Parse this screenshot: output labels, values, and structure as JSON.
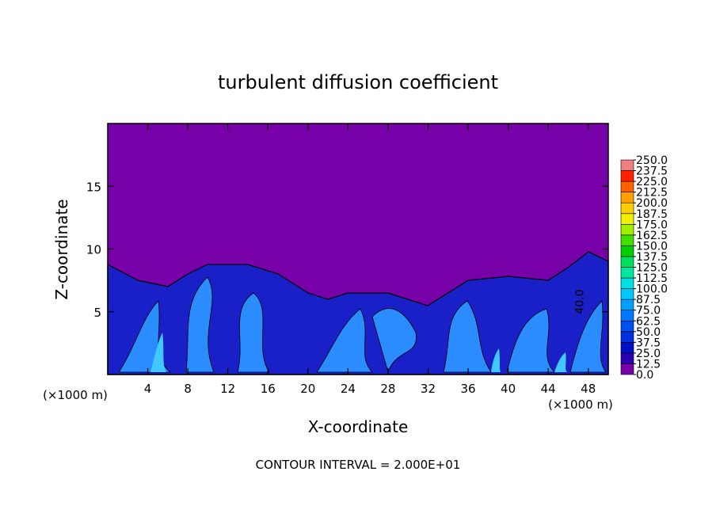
{
  "chart_data": {
    "type": "contour",
    "title": "turbulent diffusion coefficient",
    "x_label": "X-coordinate",
    "y_label": "Z-coordinate",
    "x_unit": "(×1000 m)",
    "footer": "CONTOUR INTERVAL = 2.000E+01",
    "xlim": [
      0,
      50
    ],
    "xticks": [
      4,
      8,
      12,
      16,
      20,
      24,
      28,
      32,
      36,
      40,
      44,
      48
    ],
    "ylim": [
      0,
      20
    ],
    "yticks": [
      5,
      10,
      15
    ],
    "annotations": [
      {
        "x": 47.5,
        "y": 5.8,
        "text": "40.0"
      }
    ],
    "colorbar": {
      "levels": [
        {
          "value": 0,
          "label": "0.0"
        },
        {
          "value": 12.5,
          "label": "12.5"
        },
        {
          "value": 25,
          "label": "25.0"
        },
        {
          "value": 37.5,
          "label": "37.5"
        },
        {
          "value": 50,
          "label": "50.0"
        },
        {
          "value": 62.5,
          "label": "62.5"
        },
        {
          "value": 75,
          "label": "75.0"
        },
        {
          "value": 87.5,
          "label": "87.5"
        },
        {
          "value": 100,
          "label": "100.0"
        },
        {
          "value": 112.5,
          "label": "112.5"
        },
        {
          "value": 125,
          "label": "125.0"
        },
        {
          "value": 137.5,
          "label": "137.5"
        },
        {
          "value": 150,
          "label": "150.0"
        },
        {
          "value": 162.5,
          "label": "162.5"
        },
        {
          "value": 175,
          "label": "175.0"
        },
        {
          "value": 187.5,
          "label": "187.5"
        },
        {
          "value": 200,
          "label": "200.0"
        },
        {
          "value": 212.5,
          "label": "212.5"
        },
        {
          "value": 225,
          "label": "225.0"
        },
        {
          "value": 237.5,
          "label": "237.5"
        },
        {
          "value": 250,
          "label": "250.0"
        }
      ],
      "colors": [
        "#7800a8",
        "#2a00b0",
        "#0010c8",
        "#0030e0",
        "#0050f0",
        "#0078ff",
        "#00a0ff",
        "#00c8ff",
        "#00e0e0",
        "#00e8a0",
        "#00e060",
        "#00d000",
        "#40e000",
        "#a0f000",
        "#f0f000",
        "#ffd000",
        "#ffa000",
        "#ff6000",
        "#ff2000",
        "#f08080"
      ]
    }
  }
}
